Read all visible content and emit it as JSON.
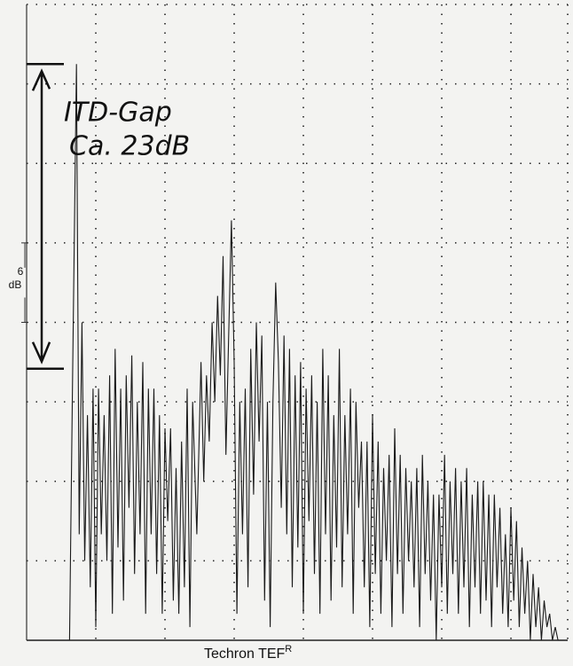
{
  "chart_data": {
    "type": "line",
    "annotation": {
      "lines": [
        "ITD-Gap",
        "Ca. 23dB"
      ],
      "from": -4.5,
      "to": -27.5
    },
    "scale_marker": {
      "lines": [
        "6",
        "dB"
      ],
      "from": -18,
      "to": -24
    },
    "footer": {
      "text": "Techron TEF",
      "superscript": "R"
    },
    "xlim": [
      0,
      7.82
    ],
    "ylim": [
      -48,
      0
    ],
    "xgrid": [
      1,
      2,
      3,
      4,
      5,
      6,
      7
    ],
    "ygrid": [
      -42,
      -36,
      -30,
      -24,
      -18,
      -12,
      -6
    ],
    "color": "#1a1a1a",
    "x": [
      0,
      0.62,
      0.66,
      0.72,
      0.76,
      0.8,
      0.84,
      0.88,
      0.92,
      0.96,
      1.0,
      1.04,
      1.08,
      1.12,
      1.16,
      1.2,
      1.24,
      1.28,
      1.32,
      1.36,
      1.4,
      1.44,
      1.48,
      1.52,
      1.56,
      1.6,
      1.64,
      1.68,
      1.72,
      1.76,
      1.8,
      1.84,
      1.88,
      1.92,
      1.96,
      2.0,
      2.04,
      2.08,
      2.12,
      2.16,
      2.2,
      2.24,
      2.28,
      2.32,
      2.36,
      2.4,
      2.46,
      2.52,
      2.56,
      2.6,
      2.64,
      2.68,
      2.72,
      2.76,
      2.8,
      2.84,
      2.88,
      2.92,
      2.96,
      3.0,
      3.04,
      3.08,
      3.12,
      3.16,
      3.2,
      3.24,
      3.28,
      3.32,
      3.36,
      3.4,
      3.44,
      3.48,
      3.52,
      3.56,
      3.6,
      3.64,
      3.68,
      3.72,
      3.76,
      3.8,
      3.84,
      3.88,
      3.92,
      3.96,
      4.0,
      4.04,
      4.08,
      4.12,
      4.16,
      4.2,
      4.24,
      4.28,
      4.32,
      4.36,
      4.4,
      4.44,
      4.48,
      4.52,
      4.56,
      4.6,
      4.64,
      4.68,
      4.72,
      4.76,
      4.8,
      4.84,
      4.88,
      4.92,
      4.96,
      5.0,
      5.04,
      5.08,
      5.12,
      5.16,
      5.2,
      5.24,
      5.28,
      5.32,
      5.36,
      5.4,
      5.44,
      5.48,
      5.52,
      5.56,
      5.6,
      5.64,
      5.68,
      5.72,
      5.76,
      5.8,
      5.84,
      5.88,
      5.92,
      5.96,
      6.0,
      6.04,
      6.08,
      6.12,
      6.16,
      6.2,
      6.24,
      6.28,
      6.32,
      6.36,
      6.4,
      6.44,
      6.48,
      6.52,
      6.56,
      6.6,
      6.64,
      6.68,
      6.72,
      6.76,
      6.8,
      6.84,
      6.88,
      6.92,
      6.96,
      7.0,
      7.04,
      7.08,
      7.12,
      7.16,
      7.2,
      7.24,
      7.28,
      7.32,
      7.36,
      7.4,
      7.44,
      7.48,
      7.52,
      7.56,
      7.6,
      7.64,
      7.68,
      7.82
    ],
    "values": [
      -48,
      -48,
      -30,
      -4.5,
      -40,
      -24,
      -42,
      -31,
      -44,
      -29,
      -47,
      -29,
      -40,
      -31,
      -42,
      -28,
      -46,
      -26,
      -41,
      -29,
      -45,
      -28,
      -38,
      -26.5,
      -43,
      -30,
      -40,
      -27,
      -46,
      -29,
      -40,
      -29,
      -43,
      -31,
      -46,
      -32,
      -39,
      -32,
      -45,
      -35,
      -46,
      -33,
      -44,
      -29,
      -47,
      -30,
      -40,
      -27,
      -36,
      -28,
      -33,
      -24,
      -30,
      -22,
      -28,
      -19,
      -34,
      -25,
      -16.3,
      -27,
      -46,
      -30,
      -40,
      -29,
      -44,
      -26,
      -37,
      -24,
      -33,
      -25,
      -45,
      -30,
      -47,
      -30,
      -21,
      -27,
      -38,
      -25,
      -40,
      -26,
      -44,
      -28,
      -41,
      -27,
      -46,
      -29,
      -39,
      -28,
      -43,
      -30,
      -46,
      -26,
      -40,
      -28,
      -45,
      -31,
      -41,
      -26,
      -44,
      -31,
      -40,
      -29,
      -46,
      -30,
      -38,
      -33,
      -44,
      -33,
      -47,
      -31,
      -43,
      -33,
      -46,
      -35,
      -42,
      -34,
      -47,
      -32,
      -43,
      -34,
      -46,
      -35,
      -42,
      -36,
      -44,
      -35,
      -47,
      -34,
      -43,
      -36,
      -45,
      -37,
      -48,
      -37,
      -44,
      -34,
      -46,
      -36,
      -43,
      -35,
      -46,
      -36,
      -44,
      -35,
      -47,
      -37,
      -44,
      -36,
      -46,
      -36,
      -45,
      -37,
      -47,
      -37,
      -44,
      -38,
      -46,
      -40,
      -47,
      -38,
      -45,
      -39,
      -47,
      -41,
      -46,
      -42,
      -48,
      -43,
      -47,
      -44,
      -48,
      -45,
      -47,
      -46,
      -48,
      -47,
      -48,
      -48
    ]
  }
}
